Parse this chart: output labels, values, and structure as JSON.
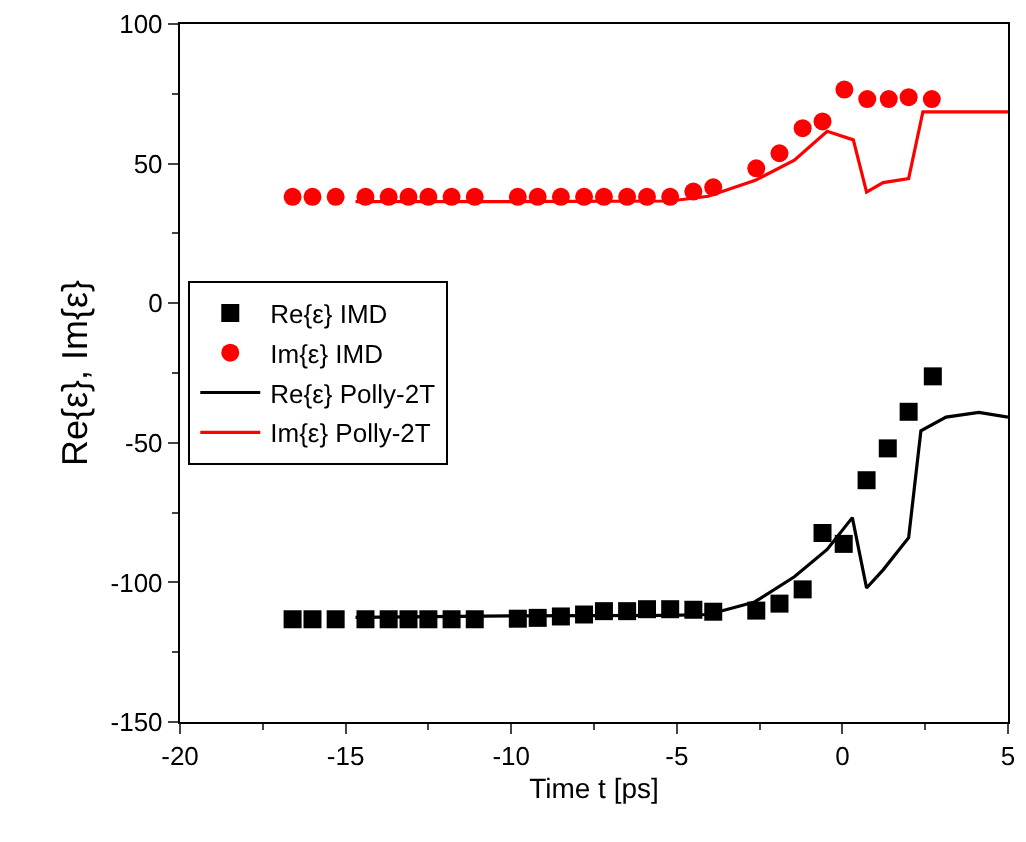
{
  "chart_data": {
    "type": "scatter",
    "xlabel": "Time t [ps]",
    "ylabel": "Re{ε}, Im{ε}",
    "xlim": [
      -20,
      5
    ],
    "xticks": [
      -20,
      -15,
      -10,
      -5,
      0,
      5
    ],
    "ylim": [
      -150,
      100
    ],
    "yticks": [
      -150,
      -100,
      -50,
      0,
      50,
      100
    ],
    "legend": "left",
    "series": [
      {
        "name": "Re{ε} IMD",
        "marker": "square",
        "color": "#000000",
        "x": [
          -16.6,
          -16.0,
          -15.3,
          -14.4,
          -13.7,
          -13.1,
          -12.5,
          -11.8,
          -11.1,
          -9.8,
          -9.2,
          -8.5,
          -7.8,
          -7.2,
          -6.5,
          -5.9,
          -5.2,
          -4.5,
          -3.9,
          -2.6,
          -1.9,
          -1.2,
          -0.6,
          0.04,
          0.73,
          1.37,
          2.0,
          2.73
        ],
        "values": [
          -113.2,
          -113.2,
          -113.2,
          -113.2,
          -113.2,
          -113.2,
          -113.2,
          -113.2,
          -113.2,
          -113.0,
          -112.7,
          -112.2,
          -111.5,
          -110.3,
          -110.3,
          -109.6,
          -109.6,
          -109.8,
          -110.5,
          -110.1,
          -107.6,
          -102.5,
          -82.3,
          -86.2,
          -63.4,
          -52.0,
          -38.9,
          -26.2
        ]
      },
      {
        "name": "Im{ε} IMD",
        "marker": "circle",
        "color": "#ff0000",
        "x": [
          -16.6,
          -16.0,
          -15.3,
          -14.4,
          -13.7,
          -13.1,
          -12.5,
          -11.8,
          -11.1,
          -9.8,
          -9.2,
          -8.5,
          -7.8,
          -7.2,
          -6.5,
          -5.9,
          -5.2,
          -4.5,
          -3.9,
          -2.6,
          -1.9,
          -1.2,
          -0.6,
          0.06,
          0.75,
          1.4,
          2.0,
          2.7
        ],
        "values": [
          38.1,
          38.1,
          38.1,
          38.1,
          38.1,
          38.1,
          38.1,
          38.1,
          38.1,
          38.1,
          38.1,
          38.1,
          38.1,
          38.1,
          38.1,
          38.1,
          38.1,
          40.0,
          41.5,
          48.3,
          53.7,
          62.7,
          65.1,
          76.5,
          73.1,
          73.1,
          73.8,
          73.1
        ]
      },
      {
        "name": "Re{ε} Polly-2T",
        "type": "line",
        "marker": "none",
        "color": "#000000",
        "x": [
          -14.7,
          -10.0,
          -5.2,
          -4.05,
          -2.65,
          -1.45,
          -0.46,
          0.3,
          0.73,
          1.23,
          2.0,
          2.37,
          3.13,
          4.12,
          5.0
        ],
        "values": [
          -112.5,
          -112.0,
          -111.8,
          -111.5,
          -107.0,
          -98.0,
          -88.2,
          -76.8,
          -102.0,
          -95.5,
          -84.0,
          -45.7,
          -40.8,
          -39.1,
          -40.8
        ]
      },
      {
        "name": "Im{ε} Polly-2T",
        "type": "line",
        "marker": "none",
        "color": "#ff0000",
        "x": [
          -14.7,
          -10.0,
          -5.2,
          -4.05,
          -2.65,
          -1.45,
          -0.46,
          0.33,
          0.73,
          1.23,
          2.0,
          2.43,
          5.0
        ],
        "values": [
          36.4,
          36.4,
          36.6,
          38.3,
          43.9,
          51.2,
          61.6,
          58.5,
          39.8,
          43.2,
          44.6,
          68.5,
          68.5
        ]
      }
    ]
  }
}
